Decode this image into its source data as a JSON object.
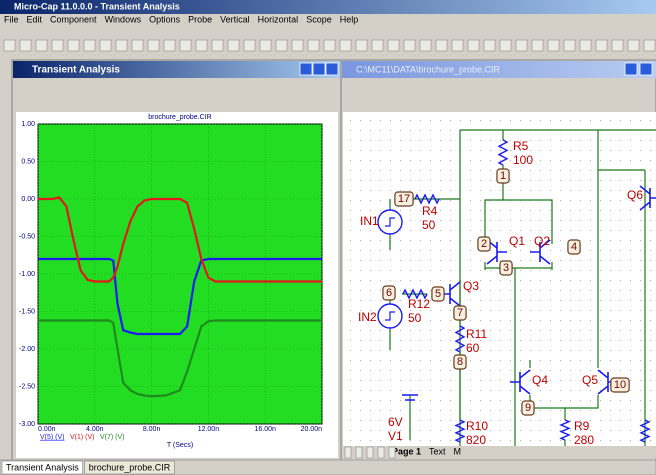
{
  "window_title": "Micro-Cap 11.0.0.0 - Transient Analysis",
  "menu": [
    "File",
    "Edit",
    "Component",
    "Windows",
    "Options",
    "Probe",
    "Vertical",
    "Horizontal",
    "Scope",
    "Help"
  ],
  "analysis_window": {
    "title": "Transient Analysis",
    "chart_data": {
      "type": "line",
      "title": "brochure_probe.CIR",
      "x_label": "T (Secs)",
      "x": [
        0,
        1,
        1.5,
        2,
        2.5,
        3,
        3.5,
        4,
        5,
        5.3,
        5.6,
        6,
        6.5,
        7,
        7.5,
        8,
        9,
        10,
        10.5,
        11,
        11.5,
        12,
        12.5,
        13,
        16,
        20
      ],
      "series": [
        {
          "name": "V(5) (V)",
          "color": "#1c1cf0",
          "values": [
            -0.8,
            -0.8,
            -0.8,
            -0.8,
            -0.8,
            -0.8,
            -0.8,
            -0.8,
            -0.8,
            -0.82,
            -1.4,
            -1.75,
            -1.78,
            -1.8,
            -1.8,
            -1.8,
            -1.8,
            -1.8,
            -1.7,
            -1.1,
            -0.82,
            -0.8,
            -0.8,
            -0.8,
            -0.8,
            -0.8
          ]
        },
        {
          "name": "V(1) (V)",
          "color": "#e01a1a",
          "values": [
            0,
            0,
            0.02,
            -0.1,
            -0.55,
            -0.95,
            -1.08,
            -1.1,
            -1.1,
            -1.05,
            -0.9,
            -0.6,
            -0.3,
            -0.1,
            -0.02,
            0,
            0,
            0,
            -0.05,
            -0.4,
            -0.8,
            -1.05,
            -1.1,
            -1.1,
            -1.1,
            -1.1
          ]
        },
        {
          "name": "V(7) (V)",
          "color": "#1f8a1f",
          "values": [
            -1.62,
            -1.62,
            -1.62,
            -1.62,
            -1.62,
            -1.62,
            -1.62,
            -1.62,
            -1.62,
            -1.65,
            -2.0,
            -2.45,
            -2.55,
            -2.6,
            -2.62,
            -2.63,
            -2.62,
            -2.55,
            -2.3,
            -2.0,
            -1.7,
            -1.63,
            -1.62,
            -1.62,
            -1.62,
            -1.62
          ]
        }
      ],
      "xlim": [
        0,
        20
      ],
      "xticks": [
        {
          "value": 0,
          "label": "0.00n"
        },
        {
          "value": 4,
          "label": "4.00n"
        },
        {
          "value": 8,
          "label": "8.00n"
        },
        {
          "value": 12,
          "label": "12.00n"
        },
        {
          "value": 16,
          "label": "16.00n"
        },
        {
          "value": 20,
          "label": "20.00n"
        }
      ],
      "ylim": [
        -3,
        1
      ],
      "yticks": [
        {
          "value": 1,
          "label": "1.00"
        },
        {
          "value": 0.5,
          "label": "0.50"
        },
        {
          "value": 0,
          "label": "0.00"
        },
        {
          "value": -0.5,
          "label": "-0.50"
        },
        {
          "value": -1,
          "label": "-1.00"
        },
        {
          "value": -1.5,
          "label": "-1.50"
        },
        {
          "value": -2,
          "label": "-2.00"
        },
        {
          "value": -2.5,
          "label": "-2.50"
        },
        {
          "value": -3,
          "label": "-3.00"
        }
      ],
      "grid": true
    }
  },
  "schematic_window": {
    "title": "C:\\MC11\\DATA\\brochure_probe.CIR",
    "labels": [
      "R5",
      "100",
      "R4",
      "50",
      "IN1",
      "Q1",
      "Q2",
      "R12",
      "50",
      "Q3",
      "IN2",
      "R11",
      "60",
      "Q4",
      "Q5",
      "6V",
      "V1",
      "R10",
      "820",
      "R9",
      "280",
      "Q6"
    ],
    "nodes": [
      "1",
      "17",
      "2",
      "4",
      "3",
      "6",
      "5",
      "7",
      "8",
      "10",
      "9"
    ],
    "tabs": [
      "Page 1",
      "Text",
      "M"
    ]
  },
  "taskbar": [
    "Transient Analysis",
    "brochure_probe.CIR"
  ]
}
